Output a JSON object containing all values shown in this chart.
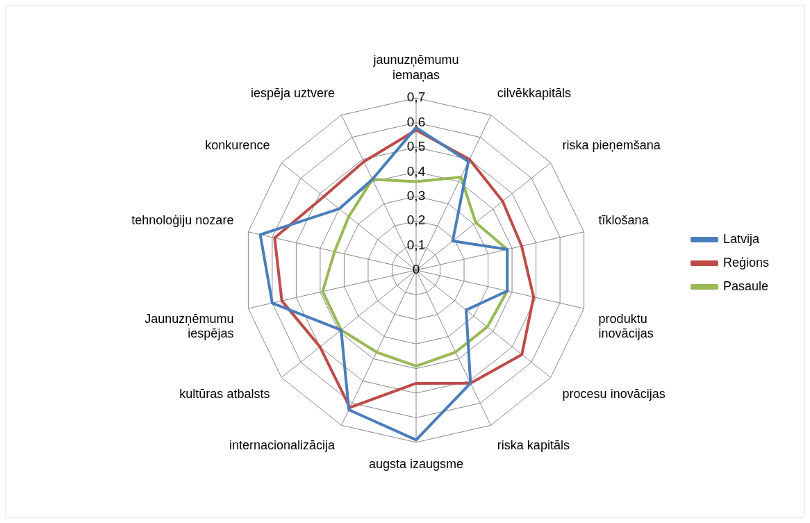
{
  "chart_data": {
    "type": "radar",
    "categories": [
      "jaunuzņēmumu iemaņas",
      "cilvēkkapitāls",
      "riska pieņemšana",
      "tīklošana",
      "produktu inovācijas",
      "procesu inovācijas",
      "riska kapitāls",
      "augsta izaugsme",
      "internacionalizācija",
      "kultūras atbalsts",
      "Jaunuzņēmumu iespējas",
      "tehnoloģiju nozare",
      "konkurence",
      "iespēja uztvere"
    ],
    "series": [
      {
        "name": "Latvija",
        "color": "#4a7ebb",
        "values": [
          0.58,
          0.49,
          0.19,
          0.38,
          0.38,
          0.26,
          0.51,
          0.69,
          0.63,
          0.39,
          0.6,
          0.65,
          0.4,
          0.41
        ]
      },
      {
        "name": "Reģions",
        "color": "#be4b48",
        "values": [
          0.57,
          0.5,
          0.45,
          0.44,
          0.49,
          0.55,
          0.51,
          0.46,
          0.62,
          0.5,
          0.56,
          0.59,
          0.48,
          0.49
        ]
      },
      {
        "name": "Pasaule",
        "color": "#98b954",
        "values": [
          0.36,
          0.42,
          0.31,
          0.38,
          0.38,
          0.37,
          0.37,
          0.39,
          0.37,
          0.39,
          0.39,
          0.34,
          0.35,
          0.41
        ]
      }
    ],
    "ylim": [
      0,
      0.7
    ],
    "yticks": [
      0,
      {
        "value": 0.1,
        "label": "0,1"
      },
      {
        "value": 0.2,
        "label": "0,2"
      },
      {
        "value": 0.3,
        "label": "0,3"
      },
      {
        "value": 0.4,
        "label": "0,4"
      },
      {
        "value": 0.5,
        "label": "0,5"
      },
      {
        "value": 0.6,
        "label": "0,6"
      },
      {
        "value": 0.7,
        "label": "0,7"
      }
    ],
    "grid": true,
    "legend": "right",
    "marker": "none",
    "line_style": "solid"
  }
}
